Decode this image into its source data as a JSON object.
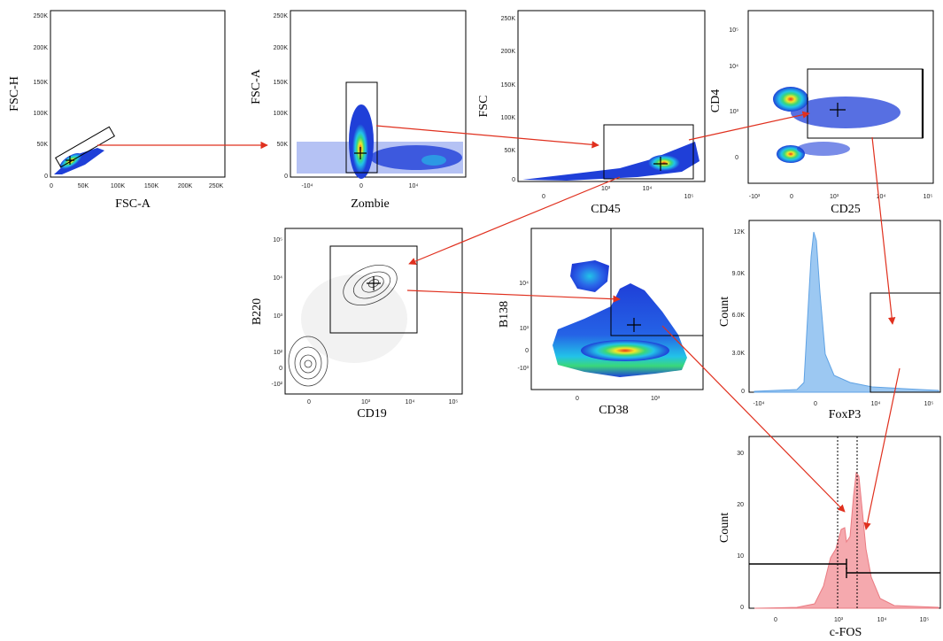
{
  "colors": {
    "arrow": "#e0301e",
    "density_low": "#1f3fd8",
    "density_mid": "#22c3e8",
    "density_high": "#f2e82a",
    "density_peak": "#e8341c",
    "histogram_blue": "#9cc8f2",
    "histogram_red": "#f5a9ae",
    "contour": "#444444"
  },
  "panels": [
    {
      "id": "fsc-singlets",
      "xlabel": "FSC-A",
      "ylabel": "FSC-H",
      "xticks": [
        "0",
        "50K",
        "100K",
        "150K",
        "200K",
        "250K"
      ],
      "yticks": [
        "0",
        "50K",
        "100K",
        "150K",
        "200K",
        "250K"
      ]
    },
    {
      "id": "live-dead",
      "xlabel": "Zombie",
      "ylabel": "FSC-A",
      "xticks": [
        "-10⁴",
        "0",
        "10⁴"
      ],
      "yticks": [
        "0",
        "50K",
        "100K",
        "150K",
        "200K",
        "250K"
      ]
    },
    {
      "id": "cd45",
      "xlabel": "CD45",
      "ylabel": "FSC",
      "xticks": [
        "0",
        "10³",
        "10⁴",
        "10⁵"
      ],
      "yticks": [
        "0",
        "50K",
        "100K",
        "150K",
        "200K",
        "250K"
      ]
    },
    {
      "id": "cd4-cd25",
      "xlabel": "CD25",
      "ylabel": "CD4",
      "xticks": [
        "-10³",
        "0",
        "10³",
        "10⁴",
        "10⁵"
      ],
      "yticks": [
        "0",
        "10³",
        "10⁴",
        "10⁵"
      ]
    },
    {
      "id": "cd19-b220",
      "xlabel": "CD19",
      "ylabel": "B220",
      "xticks": [
        "0",
        "10³",
        "10⁴",
        "10⁵"
      ],
      "yticks": [
        "-10²",
        "0",
        "10²",
        "10³",
        "10⁴",
        "10⁵"
      ]
    },
    {
      "id": "cd38-b138",
      "xlabel": "CD38",
      "ylabel": "B138",
      "xticks": [
        "0",
        "10³"
      ],
      "yticks": [
        "-10³",
        "0",
        "10³",
        "10⁴"
      ]
    },
    {
      "id": "foxp3-hist",
      "xlabel": "FoxP3",
      "ylabel": "Count",
      "xticks": [
        "-10⁴",
        "0",
        "10⁴",
        "10⁵"
      ],
      "yticks": [
        "0",
        "3.0K",
        "6.0K",
        "9.0K",
        "12K"
      ]
    },
    {
      "id": "cfos-hist",
      "xlabel": "c-FOS",
      "ylabel": "Count",
      "xticks": [
        "0",
        "10³",
        "10⁴",
        "10⁵"
      ],
      "yticks": [
        "0",
        "10",
        "20",
        "30"
      ]
    }
  ]
}
